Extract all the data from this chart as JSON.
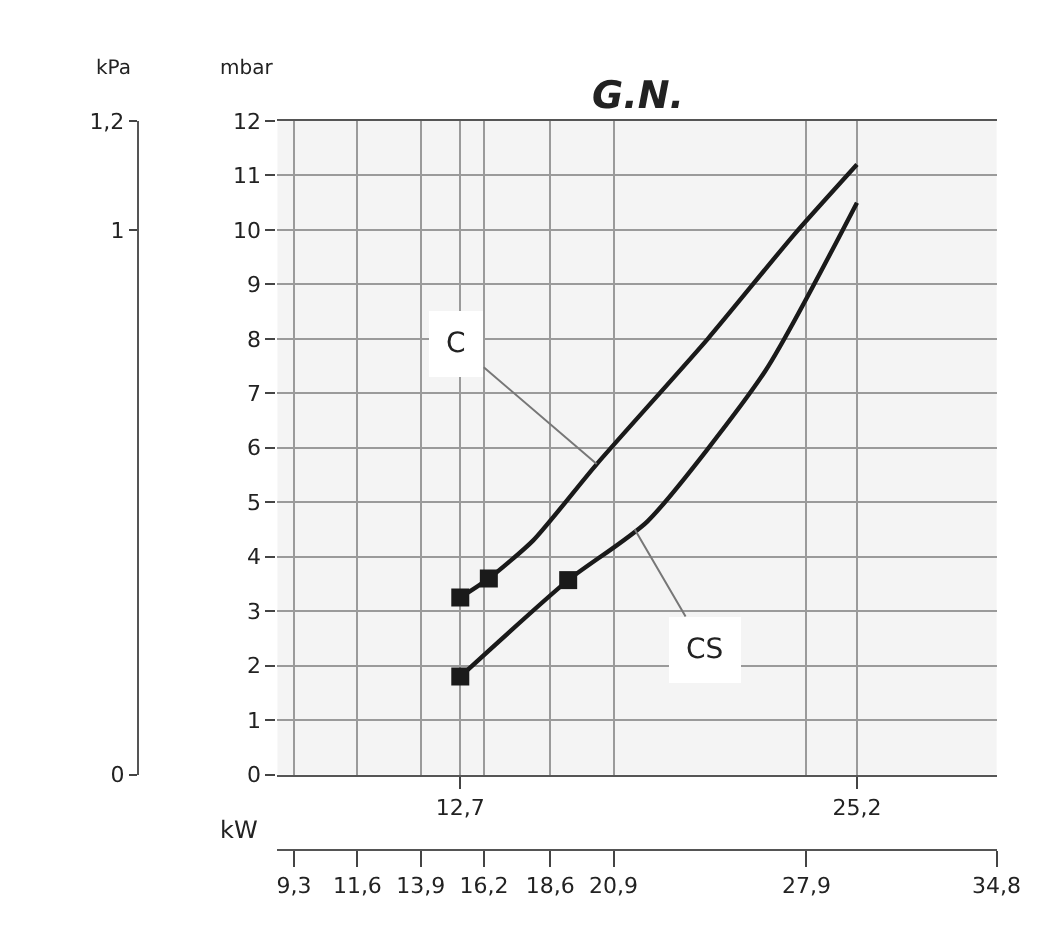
{
  "chart_data": {
    "type": "line",
    "title": "G.N.",
    "ylabel": "mbar",
    "y2label": "kPa",
    "x2label": "kW",
    "xlim": [
      6.94,
      29.6
    ],
    "xticks": [
      {
        "value": 12.7,
        "label": "12,7"
      },
      {
        "value": 25.2,
        "label": "25,2"
      }
    ],
    "x2lim": [
      8.7,
      34.8
    ],
    "x2ticks": [
      {
        "value": 9.3,
        "label": "9,3"
      },
      {
        "value": 11.6,
        "label": "11,6"
      },
      {
        "value": 13.9,
        "label": "13,9"
      },
      {
        "value": 16.2,
        "label": "16,2"
      },
      {
        "value": 18.6,
        "label": "18,6"
      },
      {
        "value": 20.9,
        "label": "20,9"
      },
      {
        "value": 27.9,
        "label": "27,9"
      },
      {
        "value": 34.8,
        "label": "34,8"
      }
    ],
    "ylim": [
      0,
      12
    ],
    "yticks": [
      0,
      1,
      2,
      3,
      4,
      5,
      6,
      7,
      8,
      9,
      10,
      11,
      12
    ],
    "y2lim": [
      0,
      1.2
    ],
    "y2ticks": [
      0,
      1,
      {
        "value": 1.2,
        "label": "1,2"
      }
    ],
    "grid": true,
    "marker": "none",
    "line_style": "solid",
    "series": [
      {
        "color": "#1a1a1a",
        "x": [
          12.7,
          13.6,
          15.0,
          17.0,
          20.5,
          23.2,
          25.2
        ],
        "values": [
          3.25,
          3.6,
          4.3,
          5.7,
          8.0,
          9.9,
          11.2
        ]
      },
      {
        "color": "#1a1a1a",
        "x": [
          12.7,
          16.1,
          18.6,
          22.3,
          25.2
        ],
        "values": [
          1.8,
          3.57,
          4.65,
          7.4,
          10.5
        ]
      },
      {
        "type": "scatter",
        "marker": "square",
        "color": "#1a1a1a",
        "x": [
          12.7,
          13.6,
          12.7,
          16.1
        ],
        "values": [
          3.25,
          3.6,
          1.8,
          3.57
        ]
      }
    ],
    "annotations": [
      {
        "text": "C",
        "x": 17.0,
        "y": 5.7
      },
      {
        "text": "CS",
        "x": 18.2,
        "y": 4.5
      }
    ]
  }
}
